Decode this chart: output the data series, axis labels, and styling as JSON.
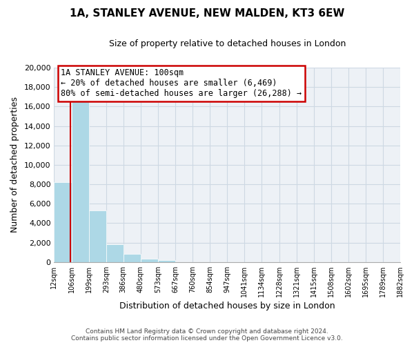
{
  "title": "1A, STANLEY AVENUE, NEW MALDEN, KT3 6EW",
  "subtitle": "Size of property relative to detached houses in London",
  "xlabel": "Distribution of detached houses by size in London",
  "ylabel": "Number of detached properties",
  "bin_edges": [
    12,
    106,
    199,
    293,
    386,
    480,
    573,
    667,
    760,
    854,
    947,
    1041,
    1134,
    1228,
    1321,
    1415,
    1508,
    1602,
    1695,
    1789,
    1882
  ],
  "bar_heights": [
    8200,
    16600,
    5300,
    1800,
    800,
    300,
    200,
    0,
    0,
    0,
    0,
    0,
    0,
    0,
    0,
    0,
    0,
    0,
    0,
    0
  ],
  "bar_color": "#add8e6",
  "property_line_x": 100,
  "property_line_color": "#cc0000",
  "annotation_title": "1A STANLEY AVENUE: 100sqm",
  "annotation_line1": "← 20% of detached houses are smaller (6,469)",
  "annotation_line2": "80% of semi-detached houses are larger (26,288) →",
  "annotation_box_color": "#ffffff",
  "annotation_box_edgecolor": "#cc0000",
  "ylim": [
    0,
    20000
  ],
  "yticks": [
    0,
    2000,
    4000,
    6000,
    8000,
    10000,
    12000,
    14000,
    16000,
    18000,
    20000
  ],
  "tick_labels": [
    "12sqm",
    "106sqm",
    "199sqm",
    "293sqm",
    "386sqm",
    "480sqm",
    "573sqm",
    "667sqm",
    "760sqm",
    "854sqm",
    "947sqm",
    "1041sqm",
    "1134sqm",
    "1228sqm",
    "1321sqm",
    "1415sqm",
    "1508sqm",
    "1602sqm",
    "1695sqm",
    "1789sqm",
    "1882sqm"
  ],
  "footer_line1": "Contains HM Land Registry data © Crown copyright and database right 2024.",
  "footer_line2": "Contains public sector information licensed under the Open Government Licence v3.0.",
  "grid_color": "#cdd8e3",
  "bg_color": "#edf1f6"
}
